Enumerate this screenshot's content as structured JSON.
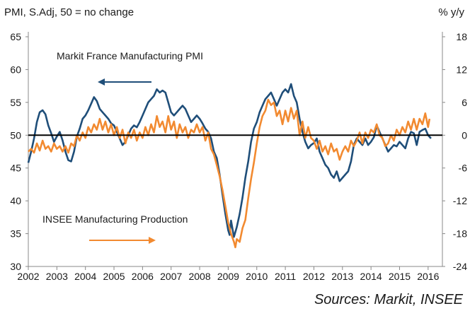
{
  "chart_data": {
    "type": "line",
    "title": "",
    "left_axis_label": "PMI, S.Adj, 50 = no change",
    "right_axis_label": "% y/y",
    "source": "Sources: Markit, INSEE",
    "x_range": [
      2002,
      2016.5
    ],
    "x_ticks": [
      "2002",
      "2003",
      "2004",
      "2005",
      "2006",
      "2007",
      "2008",
      "2009",
      "2010",
      "2011",
      "2012",
      "2013",
      "2014",
      "2015",
      "2016"
    ],
    "y_left_range": [
      30,
      65
    ],
    "y_left_ticks": [
      "30",
      "35",
      "40",
      "45",
      "50",
      "55",
      "60",
      "65"
    ],
    "y_right_range": [
      -24,
      18
    ],
    "y_right_ticks": [
      "-24",
      "-18",
      "-12",
      "-6",
      "0",
      "6",
      "12",
      "18"
    ],
    "reference_line": {
      "axis": "left",
      "value": 50
    },
    "colors": {
      "pmi": "#1f4e79",
      "insee": "#f28a30",
      "reference": "#000000",
      "text": "#1a1a1a"
    },
    "annotations": [
      {
        "text": "Markit France Manufacturing PMI",
        "series": "pmi",
        "arrow": "left"
      },
      {
        "text": "INSEE Manufacturing Production",
        "series": "insee",
        "arrow": "right"
      }
    ],
    "series": [
      {
        "name": "Markit France Manufacturing PMI",
        "axis": "left",
        "points": [
          [
            2002.0,
            45.8
          ],
          [
            2002.1,
            47.5
          ],
          [
            2002.2,
            49.5
          ],
          [
            2002.3,
            52.0
          ],
          [
            2002.4,
            53.5
          ],
          [
            2002.5,
            53.8
          ],
          [
            2002.6,
            53.2
          ],
          [
            2002.7,
            51.5
          ],
          [
            2002.8,
            50.3
          ],
          [
            2002.9,
            49.0
          ],
          [
            2003.0,
            49.8
          ],
          [
            2003.1,
            50.5
          ],
          [
            2003.2,
            49.2
          ],
          [
            2003.3,
            47.5
          ],
          [
            2003.4,
            46.2
          ],
          [
            2003.5,
            46.0
          ],
          [
            2003.6,
            47.5
          ],
          [
            2003.7,
            49.8
          ],
          [
            2003.8,
            51.0
          ],
          [
            2003.9,
            52.5
          ],
          [
            2004.0,
            53.0
          ],
          [
            2004.1,
            53.8
          ],
          [
            2004.2,
            54.8
          ],
          [
            2004.3,
            55.8
          ],
          [
            2004.4,
            55.2
          ],
          [
            2004.5,
            54.0
          ],
          [
            2004.6,
            53.5
          ],
          [
            2004.7,
            53.0
          ],
          [
            2004.8,
            52.5
          ],
          [
            2004.9,
            51.8
          ],
          [
            2005.0,
            51.5
          ],
          [
            2005.1,
            50.5
          ],
          [
            2005.2,
            49.5
          ],
          [
            2005.3,
            48.5
          ],
          [
            2005.4,
            49.0
          ],
          [
            2005.5,
            50.0
          ],
          [
            2005.6,
            51.0
          ],
          [
            2005.7,
            51.5
          ],
          [
            2005.8,
            51.2
          ],
          [
            2005.9,
            52.0
          ],
          [
            2006.0,
            53.0
          ],
          [
            2006.1,
            54.0
          ],
          [
            2006.2,
            55.0
          ],
          [
            2006.3,
            55.5
          ],
          [
            2006.4,
            56.0
          ],
          [
            2006.5,
            57.0
          ],
          [
            2006.6,
            56.5
          ],
          [
            2006.7,
            56.8
          ],
          [
            2006.8,
            56.5
          ],
          [
            2006.9,
            55.0
          ],
          [
            2007.0,
            53.5
          ],
          [
            2007.1,
            53.0
          ],
          [
            2007.2,
            53.5
          ],
          [
            2007.3,
            54.0
          ],
          [
            2007.4,
            54.5
          ],
          [
            2007.5,
            54.0
          ],
          [
            2007.6,
            53.0
          ],
          [
            2007.7,
            52.0
          ],
          [
            2007.8,
            52.5
          ],
          [
            2007.9,
            53.0
          ],
          [
            2008.0,
            52.5
          ],
          [
            2008.1,
            51.8
          ],
          [
            2008.2,
            51.0
          ],
          [
            2008.3,
            50.5
          ],
          [
            2008.4,
            49.5
          ],
          [
            2008.5,
            47.5
          ],
          [
            2008.6,
            46.5
          ],
          [
            2008.7,
            44.0
          ],
          [
            2008.8,
            41.0
          ],
          [
            2008.9,
            38.0
          ],
          [
            2009.0,
            35.5
          ],
          [
            2009.05,
            34.8
          ],
          [
            2009.1,
            37.0
          ],
          [
            2009.2,
            34.5
          ],
          [
            2009.3,
            36.0
          ],
          [
            2009.4,
            38.0
          ],
          [
            2009.5,
            40.5
          ],
          [
            2009.6,
            43.5
          ],
          [
            2009.7,
            46.0
          ],
          [
            2009.8,
            49.0
          ],
          [
            2009.9,
            51.0
          ],
          [
            2010.0,
            52.0
          ],
          [
            2010.1,
            53.5
          ],
          [
            2010.2,
            54.5
          ],
          [
            2010.3,
            55.5
          ],
          [
            2010.4,
            56.0
          ],
          [
            2010.5,
            56.5
          ],
          [
            2010.6,
            55.5
          ],
          [
            2010.7,
            54.5
          ],
          [
            2010.8,
            55.5
          ],
          [
            2010.9,
            56.5
          ],
          [
            2011.0,
            57.0
          ],
          [
            2011.1,
            56.5
          ],
          [
            2011.2,
            57.8
          ],
          [
            2011.3,
            56.0
          ],
          [
            2011.4,
            55.0
          ],
          [
            2011.5,
            52.5
          ],
          [
            2011.6,
            50.5
          ],
          [
            2011.7,
            49.0
          ],
          [
            2011.8,
            48.0
          ],
          [
            2011.9,
            48.5
          ],
          [
            2012.0,
            48.8
          ],
          [
            2012.1,
            49.5
          ],
          [
            2012.2,
            47.5
          ],
          [
            2012.3,
            46.5
          ],
          [
            2012.4,
            45.5
          ],
          [
            2012.5,
            45.0
          ],
          [
            2012.6,
            44.0
          ],
          [
            2012.7,
            43.5
          ],
          [
            2012.8,
            44.5
          ],
          [
            2012.9,
            43.0
          ],
          [
            2013.0,
            43.5
          ],
          [
            2013.1,
            44.0
          ],
          [
            2013.2,
            44.5
          ],
          [
            2013.3,
            46.0
          ],
          [
            2013.4,
            48.5
          ],
          [
            2013.5,
            49.5
          ],
          [
            2013.6,
            49.0
          ],
          [
            2013.7,
            48.5
          ],
          [
            2013.8,
            49.5
          ],
          [
            2013.9,
            48.5
          ],
          [
            2014.0,
            49.0
          ],
          [
            2014.1,
            49.7
          ],
          [
            2014.2,
            51.5
          ],
          [
            2014.3,
            50.5
          ],
          [
            2014.4,
            49.5
          ],
          [
            2014.5,
            48.5
          ],
          [
            2014.6,
            47.5
          ],
          [
            2014.7,
            48.0
          ],
          [
            2014.8,
            48.5
          ],
          [
            2014.9,
            48.3
          ],
          [
            2015.0,
            49.0
          ],
          [
            2015.1,
            48.5
          ],
          [
            2015.2,
            48.0
          ],
          [
            2015.3,
            49.5
          ],
          [
            2015.4,
            50.5
          ],
          [
            2015.5,
            50.3
          ],
          [
            2015.6,
            48.5
          ],
          [
            2015.7,
            50.5
          ],
          [
            2015.8,
            50.8
          ],
          [
            2015.9,
            51.0
          ],
          [
            2016.0,
            50.0
          ],
          [
            2016.1,
            49.5
          ]
        ]
      },
      {
        "name": "INSEE Manufacturing Production",
        "axis": "right",
        "points": [
          [
            2002.0,
            -3.0
          ],
          [
            2002.1,
            -2.5
          ],
          [
            2002.2,
            -3.2
          ],
          [
            2002.3,
            -1.5
          ],
          [
            2002.4,
            -2.8
          ],
          [
            2002.5,
            -1.0
          ],
          [
            2002.6,
            -2.5
          ],
          [
            2002.7,
            -2.0
          ],
          [
            2002.8,
            -3.0
          ],
          [
            2002.9,
            -1.5
          ],
          [
            2003.0,
            -2.5
          ],
          [
            2003.1,
            -2.0
          ],
          [
            2003.2,
            -3.0
          ],
          [
            2003.3,
            -2.0
          ],
          [
            2003.4,
            -3.2
          ],
          [
            2003.5,
            -1.5
          ],
          [
            2003.6,
            -2.0
          ],
          [
            2003.7,
            0.0
          ],
          [
            2003.8,
            -1.0
          ],
          [
            2003.9,
            0.5
          ],
          [
            2004.0,
            -0.5
          ],
          [
            2004.1,
            1.5
          ],
          [
            2004.2,
            0.5
          ],
          [
            2004.3,
            2.0
          ],
          [
            2004.4,
            1.0
          ],
          [
            2004.5,
            3.0
          ],
          [
            2004.6,
            1.0
          ],
          [
            2004.7,
            2.5
          ],
          [
            2004.8,
            0.5
          ],
          [
            2004.9,
            2.0
          ],
          [
            2005.0,
            0.0
          ],
          [
            2005.1,
            1.5
          ],
          [
            2005.2,
            -0.5
          ],
          [
            2005.3,
            1.0
          ],
          [
            2005.4,
            -1.5
          ],
          [
            2005.5,
            0.5
          ],
          [
            2005.6,
            -0.5
          ],
          [
            2005.7,
            1.0
          ],
          [
            2005.8,
            -1.0
          ],
          [
            2005.9,
            0.5
          ],
          [
            2006.0,
            -0.5
          ],
          [
            2006.1,
            1.5
          ],
          [
            2006.2,
            0.0
          ],
          [
            2006.3,
            2.0
          ],
          [
            2006.4,
            0.5
          ],
          [
            2006.5,
            3.5
          ],
          [
            2006.6,
            1.5
          ],
          [
            2006.7,
            2.5
          ],
          [
            2006.8,
            0.5
          ],
          [
            2006.9,
            3.5
          ],
          [
            2007.0,
            1.0
          ],
          [
            2007.1,
            2.5
          ],
          [
            2007.2,
            -0.5
          ],
          [
            2007.3,
            2.0
          ],
          [
            2007.4,
            0.5
          ],
          [
            2007.5,
            1.5
          ],
          [
            2007.6,
            -0.5
          ],
          [
            2007.7,
            1.0
          ],
          [
            2007.8,
            0.5
          ],
          [
            2007.9,
            2.0
          ],
          [
            2008.0,
            0.5
          ],
          [
            2008.1,
            1.5
          ],
          [
            2008.2,
            -1.0
          ],
          [
            2008.3,
            0.5
          ],
          [
            2008.4,
            -2.5
          ],
          [
            2008.5,
            -3.5
          ],
          [
            2008.6,
            -5.5
          ],
          [
            2008.7,
            -7.5
          ],
          [
            2008.8,
            -10.0
          ],
          [
            2008.9,
            -13.0
          ],
          [
            2009.0,
            -16.0
          ],
          [
            2009.1,
            -18.0
          ],
          [
            2009.2,
            -19.5
          ],
          [
            2009.25,
            -20.5
          ],
          [
            2009.3,
            -19.0
          ],
          [
            2009.4,
            -19.5
          ],
          [
            2009.5,
            -17.0
          ],
          [
            2009.6,
            -15.5
          ],
          [
            2009.7,
            -11.5
          ],
          [
            2009.8,
            -8.0
          ],
          [
            2009.9,
            -5.0
          ],
          [
            2010.0,
            -1.5
          ],
          [
            2010.1,
            1.5
          ],
          [
            2010.2,
            3.5
          ],
          [
            2010.3,
            4.5
          ],
          [
            2010.4,
            6.5
          ],
          [
            2010.5,
            5.5
          ],
          [
            2010.6,
            6.0
          ],
          [
            2010.7,
            3.5
          ],
          [
            2010.8,
            4.5
          ],
          [
            2010.9,
            2.0
          ],
          [
            2011.0,
            4.5
          ],
          [
            2011.1,
            2.5
          ],
          [
            2011.2,
            5.0
          ],
          [
            2011.3,
            3.0
          ],
          [
            2011.4,
            4.5
          ],
          [
            2011.5,
            0.0
          ],
          [
            2011.6,
            2.5
          ],
          [
            2011.7,
            -0.5
          ],
          [
            2011.8,
            1.5
          ],
          [
            2011.9,
            -0.5
          ],
          [
            2012.0,
            -1.0
          ],
          [
            2012.1,
            -2.5
          ],
          [
            2012.2,
            -1.0
          ],
          [
            2012.3,
            -3.0
          ],
          [
            2012.4,
            -2.0
          ],
          [
            2012.5,
            -3.5
          ],
          [
            2012.6,
            -1.5
          ],
          [
            2012.7,
            -3.0
          ],
          [
            2012.8,
            -2.5
          ],
          [
            2012.9,
            -4.5
          ],
          [
            2013.0,
            -3.0
          ],
          [
            2013.1,
            -2.0
          ],
          [
            2013.2,
            -3.0
          ],
          [
            2013.3,
            -1.0
          ],
          [
            2013.4,
            -2.0
          ],
          [
            2013.5,
            -1.0
          ],
          [
            2013.6,
            0.5
          ],
          [
            2013.7,
            -1.5
          ],
          [
            2013.8,
            0.5
          ],
          [
            2013.9,
            -0.5
          ],
          [
            2014.0,
            1.0
          ],
          [
            2014.1,
            0.5
          ],
          [
            2014.2,
            2.0
          ],
          [
            2014.3,
            0.0
          ],
          [
            2014.4,
            -0.5
          ],
          [
            2014.5,
            -2.0
          ],
          [
            2014.6,
            -1.5
          ],
          [
            2014.7,
            0.0
          ],
          [
            2014.8,
            -1.0
          ],
          [
            2014.9,
            1.0
          ],
          [
            2015.0,
            0.0
          ],
          [
            2015.1,
            1.5
          ],
          [
            2015.2,
            0.5
          ],
          [
            2015.3,
            2.5
          ],
          [
            2015.4,
            1.0
          ],
          [
            2015.5,
            3.0
          ],
          [
            2015.6,
            1.0
          ],
          [
            2015.7,
            3.0
          ],
          [
            2015.8,
            2.0
          ],
          [
            2015.9,
            4.0
          ],
          [
            2016.0,
            1.5
          ],
          [
            2016.05,
            3.0
          ]
        ]
      }
    ]
  }
}
